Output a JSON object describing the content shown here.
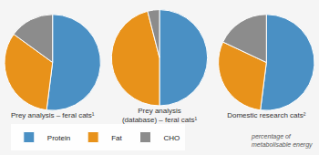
{
  "chart_data": [
    {
      "type": "pie",
      "title": "Prey analysis – feral cats¹",
      "categories": [
        "Protein",
        "Fat",
        "CHO"
      ],
      "values": [
        52,
        33,
        15
      ],
      "colors": [
        "#4a90c4",
        "#e8921a",
        "#8c8c8c"
      ],
      "legend": "bottom",
      "annotations": [
        "percentage of\nmetabolisable energy"
      ]
    },
    {
      "type": "pie",
      "title": "Prey analysis\n(database) – feral cats¹",
      "categories": [
        "Protein",
        "Fat",
        "CHO"
      ],
      "values": [
        50,
        46,
        4
      ],
      "colors": [
        "#4a90c4",
        "#e8921a",
        "#8c8c8c"
      ],
      "legend": "bottom"
    },
    {
      "type": "pie",
      "title": "Domestic research cats²",
      "categories": [
        "Protein",
        "Fat",
        "CHO"
      ],
      "values": [
        52,
        30,
        18
      ],
      "colors": [
        "#4a90c4",
        "#e8921a",
        "#8c8c8c"
      ],
      "legend": "bottom"
    }
  ]
}
